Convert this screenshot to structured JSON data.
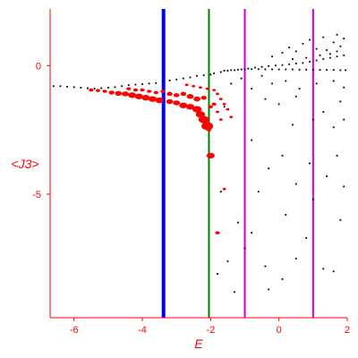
{
  "chart_data": {
    "type": "scatter",
    "xlabel": "E",
    "ylabel": "<J3>",
    "xlim": [
      -6.7,
      2.0
    ],
    "ylim": [
      -9.8,
      2.2
    ],
    "x_ticks": [
      -6,
      -4,
      -2,
      0,
      2
    ],
    "y_ticks": [
      0,
      -5
    ],
    "colors": {
      "axis": "#ff0000",
      "text": "#ff0000",
      "black_points": "#000000",
      "red_points": "#ff0000"
    },
    "vertical_lines": [
      {
        "x": -3.38,
        "color": "#0000ff"
      },
      {
        "x": -2.05,
        "color": "#008000"
      },
      {
        "x": -1.0,
        "color": "#cc00cc"
      },
      {
        "x": 1.0,
        "color": "#cc00cc"
      }
    ],
    "series": [
      {
        "color": "#000000",
        "points": [
          [
            -6.6,
            -0.8
          ],
          [
            -6.4,
            -0.8
          ],
          [
            -6.2,
            -0.82
          ],
          [
            -6.0,
            -0.84
          ],
          [
            -5.8,
            -0.86
          ],
          [
            -5.6,
            -0.88
          ],
          [
            -5.4,
            -0.9
          ],
          [
            -5.2,
            -0.88
          ],
          [
            -5.0,
            -0.86
          ],
          [
            -4.8,
            -0.84
          ],
          [
            -4.6,
            -0.8
          ],
          [
            -4.4,
            -0.76
          ],
          [
            -4.2,
            -0.74
          ],
          [
            -4.0,
            -0.72
          ],
          [
            -3.8,
            -0.7
          ],
          [
            -3.6,
            -0.68
          ],
          [
            -3.4,
            -0.62
          ],
          [
            -3.2,
            -0.58
          ],
          [
            -3.0,
            -0.54
          ],
          [
            -2.8,
            -0.5
          ],
          [
            -2.6,
            -0.46
          ],
          [
            -2.4,
            -0.4
          ],
          [
            -2.2,
            -0.38
          ],
          [
            -2.0,
            -0.35
          ],
          [
            -1.9,
            -0.3
          ],
          [
            -1.7,
            -0.25
          ],
          [
            -1.5,
            -0.2
          ],
          [
            -1.3,
            -0.18
          ],
          [
            -1.1,
            -0.15
          ],
          [
            -0.9,
            -0.12
          ],
          [
            -0.7,
            -0.08
          ],
          [
            -0.5,
            -0.05
          ],
          [
            -0.3,
            -0.02
          ],
          [
            -0.1,
            0.0
          ],
          [
            0.1,
            0.02
          ],
          [
            0.3,
            0.05
          ],
          [
            0.5,
            0.08
          ],
          [
            0.7,
            0.1
          ],
          [
            0.9,
            0.15
          ],
          [
            1.1,
            0.2
          ],
          [
            1.3,
            0.25
          ],
          [
            1.5,
            0.3
          ],
          [
            1.7,
            0.35
          ],
          [
            1.9,
            0.4
          ],
          [
            -1.6,
            -0.2
          ],
          [
            -1.4,
            -0.18
          ],
          [
            -1.2,
            -0.16
          ],
          [
            -1.0,
            -0.15
          ],
          [
            -0.8,
            -0.14
          ],
          [
            -0.6,
            -0.14
          ],
          [
            -0.4,
            -0.15
          ],
          [
            -0.2,
            -0.15
          ],
          [
            0.0,
            -0.15
          ],
          [
            0.2,
            -0.15
          ],
          [
            0.4,
            -0.15
          ],
          [
            0.6,
            -0.16
          ],
          [
            0.8,
            -0.16
          ],
          [
            1.0,
            -0.16
          ],
          [
            1.2,
            -0.17
          ],
          [
            1.4,
            -0.17
          ],
          [
            1.6,
            -0.17
          ],
          [
            1.8,
            -0.18
          ],
          [
            1.95,
            -0.18
          ],
          [
            -0.2,
            0.35
          ],
          [
            0.1,
            0.5
          ],
          [
            0.3,
            0.7
          ],
          [
            0.5,
            0.55
          ],
          [
            0.7,
            0.85
          ],
          [
            0.9,
            1.0
          ],
          [
            1.1,
            0.65
          ],
          [
            1.3,
            1.1
          ],
          [
            1.5,
            0.45
          ],
          [
            1.6,
            0.9
          ],
          [
            1.7,
            1.2
          ],
          [
            1.8,
            0.75
          ],
          [
            1.9,
            1.05
          ],
          [
            0.4,
            0.25
          ],
          [
            0.8,
            0.3
          ],
          [
            1.2,
            0.4
          ],
          [
            1.4,
            0.6
          ],
          [
            1.7,
            0.55
          ],
          [
            -1.4,
            -0.7
          ],
          [
            -1.1,
            -0.5
          ],
          [
            -0.8,
            -0.9
          ],
          [
            -0.5,
            -0.4
          ],
          [
            -0.2,
            -0.7
          ],
          [
            0.2,
            -0.6
          ],
          [
            0.6,
            -0.9
          ],
          [
            1.1,
            -0.7
          ],
          [
            1.6,
            -0.6
          ],
          [
            1.9,
            -0.85
          ],
          [
            -0.4,
            -1.3
          ],
          [
            0.0,
            -1.5
          ],
          [
            0.5,
            -1.2
          ],
          [
            1.3,
            -1.8
          ],
          [
            1.8,
            -1.4
          ],
          [
            -1.6,
            -1.6
          ],
          [
            0.4,
            -2.3
          ],
          [
            1.0,
            -2.1
          ],
          [
            1.6,
            -2.4
          ],
          [
            1.9,
            -2.1
          ],
          [
            -0.8,
            -2.9
          ],
          [
            0.1,
            -3.5
          ],
          [
            0.9,
            -3.8
          ],
          [
            1.7,
            -3.5
          ],
          [
            -0.3,
            -4.0
          ],
          [
            0.5,
            -4.6
          ],
          [
            1.4,
            -4.3
          ],
          [
            1.9,
            -4.7
          ],
          [
            -1.7,
            -4.9
          ],
          [
            -0.6,
            -4.9
          ],
          [
            1.0,
            -5.2
          ],
          [
            0.2,
            -5.8
          ],
          [
            -1.2,
            -6.1
          ],
          [
            1.8,
            -6.0
          ],
          [
            -0.8,
            -6.5
          ],
          [
            0.8,
            -6.7
          ],
          [
            -1.0,
            -7.1
          ],
          [
            0.5,
            -7.5
          ],
          [
            -1.5,
            -7.6
          ],
          [
            -0.4,
            -7.8
          ],
          [
            1.3,
            -7.9
          ],
          [
            0.1,
            -8.3
          ],
          [
            -1.8,
            -8.1
          ],
          [
            1.6,
            -8.0
          ],
          [
            -1.3,
            -8.8
          ],
          [
            -0.3,
            -8.7
          ]
        ]
      },
      {
        "color": "#ff0000",
        "points": [
          [
            -5.5,
            -0.95,
            2
          ],
          [
            -5.3,
            -0.97,
            2
          ],
          [
            -5.1,
            -1.0,
            2
          ],
          [
            -4.9,
            -1.05,
            2.5
          ],
          [
            -4.7,
            -1.08,
            3
          ],
          [
            -4.5,
            -1.1,
            3
          ],
          [
            -4.3,
            -1.15,
            3.5
          ],
          [
            -4.1,
            -1.2,
            3.5
          ],
          [
            -3.9,
            -1.25,
            3.5
          ],
          [
            -3.7,
            -1.3,
            3.5
          ],
          [
            -3.5,
            -1.35,
            3.5
          ],
          [
            -4.4,
            -0.9,
            2
          ],
          [
            -4.2,
            -0.95,
            2
          ],
          [
            -4.0,
            -0.95,
            2
          ],
          [
            -3.8,
            -1.0,
            2
          ],
          [
            -3.6,
            -1.05,
            2
          ],
          [
            -3.4,
            -1.0,
            2
          ],
          [
            -3.2,
            -1.1,
            2.5
          ],
          [
            -3.0,
            -1.15,
            2.5
          ],
          [
            -2.8,
            -1.1,
            2.5
          ],
          [
            -2.6,
            -1.2,
            3
          ],
          [
            -2.4,
            -1.3,
            3
          ],
          [
            -2.2,
            -1.25,
            2.5
          ],
          [
            -3.2,
            -1.4,
            3
          ],
          [
            -3.0,
            -1.45,
            3
          ],
          [
            -2.8,
            -1.55,
            3.5
          ],
          [
            -2.6,
            -1.6,
            3.5
          ],
          [
            -2.4,
            -1.7,
            4
          ],
          [
            -2.3,
            -1.9,
            4
          ],
          [
            -2.2,
            -2.1,
            4.5
          ],
          [
            -2.1,
            -2.35,
            5
          ],
          [
            -2.05,
            -2.5,
            2
          ],
          [
            -2.0,
            -3.5,
            3.5
          ],
          [
            -2.7,
            -0.75,
            1.5
          ],
          [
            -2.5,
            -0.8,
            1.5
          ],
          [
            -2.3,
            -0.85,
            1.5
          ],
          [
            -2.1,
            -0.9,
            1.5
          ],
          [
            -1.9,
            -0.95,
            1.5
          ],
          [
            -1.8,
            -1.1,
            1.5
          ],
          [
            -1.7,
            -1.3,
            1.5
          ],
          [
            -1.6,
            -1.5,
            1.5
          ],
          [
            -1.5,
            -1.7,
            1.5
          ],
          [
            -1.4,
            -2.0,
            1.5
          ],
          [
            -1.9,
            -1.5,
            2
          ],
          [
            -1.8,
            -1.8,
            1.5
          ],
          [
            -1.7,
            -2.1,
            1.5
          ],
          [
            -2.0,
            -1.6,
            2
          ],
          [
            -1.6,
            -4.8,
            1.5
          ],
          [
            -1.8,
            -6.5,
            2
          ]
        ]
      }
    ]
  }
}
